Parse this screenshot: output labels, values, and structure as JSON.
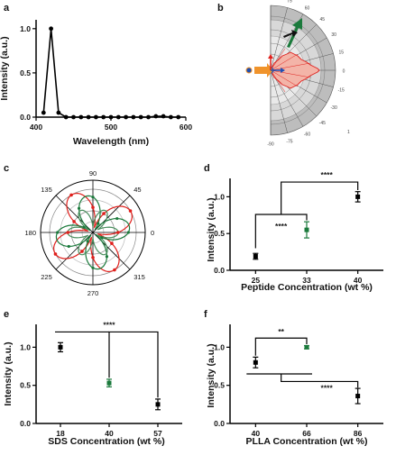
{
  "panels": {
    "a": "a",
    "b": "b",
    "c": "c",
    "d": "d",
    "e": "e",
    "f": "f"
  },
  "colors": {
    "black": "#000000",
    "green": "#1b7a3c",
    "red": "#e0201c",
    "lightred": "#f3b4a8",
    "blue": "#1f4fb3",
    "orange": "#f0932b",
    "gray": "#a8a8a8"
  },
  "b_labels": [
    "90",
    "75",
    "60",
    "45",
    "30",
    "15",
    "0",
    "-15",
    "-30",
    "-45",
    "-60",
    "-75",
    "-90"
  ],
  "b_small": "1",
  "c_labels": [
    "90",
    "45",
    "0",
    "315",
    "270",
    "225",
    "180",
    "135"
  ],
  "stars": "****",
  "stars2": "**",
  "chart_data": [
    {
      "type": "line",
      "panel": "a",
      "xlabel": "Wavelength (nm)",
      "ylabel": "Intensity (a.u.)",
      "xlim": [
        400,
        600
      ],
      "ylim": [
        0,
        1.1
      ],
      "xticks": [
        "400",
        "500",
        "600"
      ],
      "yticks": [
        "0.0",
        "0.5",
        "1.0"
      ],
      "x": [
        410,
        420,
        430,
        440,
        450,
        460,
        470,
        480,
        490,
        500,
        510,
        520,
        530,
        540,
        550,
        560,
        570,
        580,
        590
      ],
      "y": [
        0.05,
        1.0,
        0.05,
        0.0,
        0.0,
        0.0,
        0.0,
        0.0,
        0.0,
        0.0,
        0.0,
        0.0,
        0.0,
        0.0,
        0.0,
        0.01,
        0.01,
        0.0,
        0.0
      ]
    },
    {
      "type": "scatter",
      "panel": "d",
      "xlabel": "Peptide Concentration (wt %)",
      "ylabel": "Intensity (a.u.)",
      "ylim": [
        0,
        1.25
      ],
      "yticks": [
        "0.0",
        "0.5",
        "1.0"
      ],
      "categories": [
        "25",
        "33",
        "40"
      ],
      "values": [
        0.19,
        0.55,
        1.0
      ],
      "errors": [
        0.04,
        0.11,
        0.07
      ],
      "colors": [
        "black",
        "green",
        "black"
      ],
      "significance": [
        "****",
        "****"
      ]
    },
    {
      "type": "scatter",
      "panel": "e",
      "xlabel": "SDS Concentration (wt %)",
      "ylabel": "Intensity (a.u.)",
      "ylim": [
        0,
        1.3
      ],
      "yticks": [
        "0.0",
        "0.5",
        "1.0"
      ],
      "categories": [
        "18",
        "40",
        "57"
      ],
      "values": [
        1.0,
        0.53,
        0.25
      ],
      "errors": [
        0.06,
        0.05,
        0.07
      ],
      "colors": [
        "black",
        "green",
        "black"
      ],
      "significance": [
        "****"
      ]
    },
    {
      "type": "scatter",
      "panel": "f",
      "xlabel": "PLLA Concentration (wt %)",
      "ylabel": "Intensity (a.u.)",
      "ylim": [
        0,
        1.3
      ],
      "yticks": [
        "0.0",
        "0.5",
        "1.0"
      ],
      "categories": [
        "40",
        "66",
        "86"
      ],
      "values": [
        0.8,
        1.0,
        0.36
      ],
      "errors": [
        0.07,
        0.02,
        0.1
      ],
      "colors": [
        "black",
        "green",
        "black"
      ],
      "significance": [
        "**",
        "****"
      ]
    }
  ]
}
